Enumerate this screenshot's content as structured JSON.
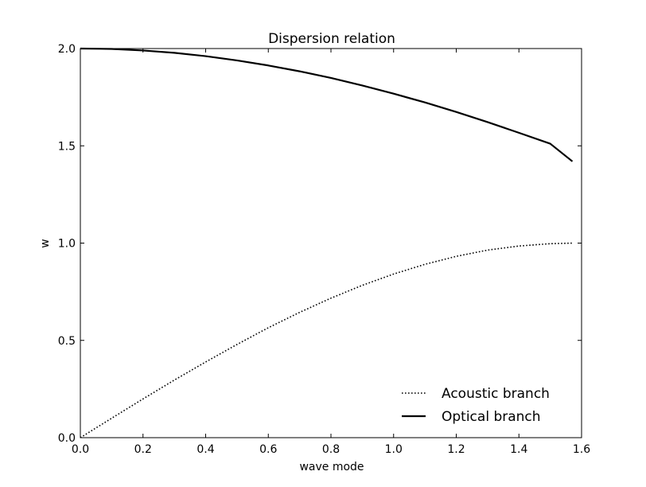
{
  "chart_data": {
    "type": "line",
    "title": "Dispersion relation",
    "xlabel": "wave mode",
    "ylabel": "w",
    "xlim": [
      0.0,
      1.6
    ],
    "ylim": [
      0.0,
      2.0
    ],
    "xticks": [
      "0.0",
      "0.2",
      "0.4",
      "0.6",
      "0.8",
      "1.0",
      "1.2",
      "1.4",
      "1.6"
    ],
    "yticks": [
      "0.0",
      "0.5",
      "1.0",
      "1.5",
      "2.0"
    ],
    "grid": false,
    "legend_position": "lower-right",
    "series": [
      {
        "name": "Acoustic branch",
        "style": "dotted",
        "color": "#000000",
        "x": [
          0.0,
          0.1,
          0.2,
          0.3,
          0.4,
          0.5,
          0.6,
          0.7,
          0.8,
          0.9,
          1.0,
          1.1,
          1.2,
          1.3,
          1.4,
          1.5,
          1.5708
        ],
        "y": [
          0.0,
          0.1,
          0.199,
          0.296,
          0.389,
          0.479,
          0.565,
          0.644,
          0.717,
          0.783,
          0.841,
          0.891,
          0.932,
          0.964,
          0.985,
          0.997,
          1.0
        ]
      },
      {
        "name": "Optical branch",
        "style": "solid",
        "color": "#000000",
        "x": [
          0.0,
          0.1,
          0.2,
          0.3,
          0.4,
          0.5,
          0.6,
          0.7,
          0.8,
          0.9,
          1.0,
          1.1,
          1.2,
          1.3,
          1.4,
          1.5,
          1.5708
        ],
        "y": [
          2.0,
          1.998,
          1.99,
          1.978,
          1.961,
          1.939,
          1.913,
          1.883,
          1.849,
          1.81,
          1.768,
          1.723,
          1.674,
          1.622,
          1.567,
          1.511,
          1.42
        ]
      }
    ]
  }
}
